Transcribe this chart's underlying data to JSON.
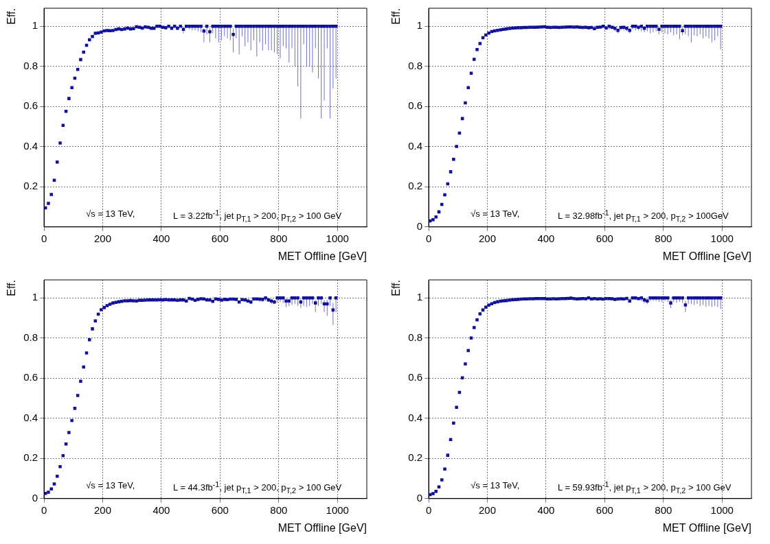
{
  "chart_data": [
    {
      "type": "scatter",
      "xlabel": "MET Offline [GeV]",
      "ylabel": "Eff.",
      "color": "#10109a",
      "marker": "square",
      "grid": true,
      "xlim": [
        0,
        1100
      ],
      "xticks": [
        0,
        200,
        400,
        600,
        800,
        1000
      ],
      "ylim": [
        0,
        1.09
      ],
      "yticks": [
        0.2,
        0.4,
        0.6,
        0.8,
        1
      ],
      "annotations": [
        "√s = 13 TeV,",
        "L = 3.22fb$^{-1}$, jet p$_{T,1}$ > 200, p$_{T,2}$ > 100 GeV"
      ],
      "x": [
        5,
        15,
        25,
        35,
        45,
        55,
        65,
        75,
        85,
        95,
        105,
        115,
        125,
        135,
        145,
        155,
        165,
        175,
        185,
        195,
        205,
        215,
        225,
        235,
        245,
        255,
        265,
        275,
        285,
        295,
        305,
        315,
        325,
        335,
        345,
        355,
        365,
        375,
        385,
        395,
        405,
        415,
        425,
        435,
        445,
        455,
        465,
        475,
        485,
        495,
        505,
        515,
        525,
        535,
        545,
        555,
        565,
        575,
        585,
        595,
        605,
        615,
        625,
        635,
        645,
        655,
        665,
        675,
        685,
        695,
        705,
        715,
        725,
        735,
        745,
        755,
        765,
        775,
        785,
        795,
        805,
        815,
        825,
        835,
        845,
        855,
        865,
        875,
        885,
        895,
        905,
        915,
        925,
        935,
        945,
        955,
        965,
        975,
        985,
        995
      ],
      "values": [
        0.095,
        0.117,
        0.162,
        0.233,
        0.323,
        0.418,
        0.506,
        0.576,
        0.64,
        0.694,
        0.741,
        0.785,
        0.834,
        0.871,
        0.905,
        0.933,
        0.949,
        0.965,
        0.967,
        0.971,
        0.977,
        0.979,
        0.978,
        0.979,
        0.984,
        0.987,
        0.984,
        0.987,
        0.991,
        0.987,
        0.988,
        0.998,
        0.995,
        0.991,
        0.997,
        0.995,
        0.99,
        0.99,
        1,
        1,
        0.995,
        0.993,
        1,
        0.99,
        1,
        0.99,
        1,
        0.985,
        1,
        1,
        1,
        1,
        1,
        1,
        0.976,
        1,
        0.973,
        1,
        1,
        1,
        1,
        1,
        1,
        1,
        0.959,
        1,
        1,
        1,
        1,
        1,
        1,
        1,
        1,
        1,
        1,
        1,
        1,
        1,
        1,
        1,
        1,
        1,
        1,
        1,
        1,
        1,
        1,
        1,
        1,
        1,
        1,
        1,
        1,
        1,
        1,
        1,
        1,
        1,
        1,
        1
      ],
      "errors": [
        null,
        null,
        null,
        null,
        null,
        null,
        null,
        null,
        null,
        null,
        null,
        null,
        null,
        null,
        null,
        null,
        null,
        null,
        null,
        null,
        null,
        null,
        null,
        null,
        null,
        null,
        null,
        null,
        null,
        null,
        null,
        null,
        null,
        null,
        null,
        null,
        null,
        null,
        null,
        null,
        null,
        null,
        null,
        null,
        null,
        null,
        null,
        [
          0.965,
          0.995
        ],
        [
          0.99,
          1
        ],
        [
          0.985,
          1
        ],
        [
          0.98,
          1
        ],
        [
          0.98,
          1
        ],
        [
          0.975,
          1
        ],
        [
          0.97,
          1
        ],
        [
          0.92,
          0.99
        ],
        [
          0.96,
          1
        ],
        [
          0.92,
          0.99
        ],
        [
          0.965,
          1
        ],
        [
          0.94,
          1
        ],
        [
          0.92,
          1
        ],
        [
          0.93,
          1
        ],
        [
          0.95,
          1
        ],
        [
          0.94,
          1
        ],
        [
          0.93,
          1
        ],
        [
          0.87,
          0.99
        ],
        [
          0.94,
          1
        ],
        [
          0.86,
          1
        ],
        [
          0.95,
          1
        ],
        [
          0.9,
          1
        ],
        [
          0.92,
          1
        ],
        [
          0.88,
          1
        ],
        [
          0.93,
          1
        ],
        [
          0.85,
          1
        ],
        [
          0.92,
          1
        ],
        [
          0.88,
          1
        ],
        [
          0.91,
          1
        ],
        [
          0.88,
          1
        ],
        [
          0.88,
          1
        ],
        [
          0.87,
          1
        ],
        [
          0.86,
          1
        ],
        [
          0.84,
          1
        ],
        [
          0.9,
          1
        ],
        [
          0.89,
          1
        ],
        [
          0.82,
          1
        ],
        [
          0.89,
          1
        ],
        [
          0.8,
          1
        ],
        [
          0.7,
          1
        ],
        [
          0.54,
          1
        ],
        [
          0.91,
          1
        ],
        [
          0.8,
          1
        ],
        [
          0.8,
          1
        ],
        [
          0.77,
          1
        ],
        [
          0.89,
          1
        ],
        [
          0.74,
          1
        ],
        [
          0.54,
          1
        ],
        [
          0.63,
          1
        ],
        [
          0.89,
          1
        ],
        [
          0.54,
          1
        ],
        [
          0.69,
          1
        ],
        [
          0.74,
          1
        ]
      ]
    },
    {
      "type": "scatter",
      "xlabel": "MET Offline [GeV]",
      "ylabel": "Eff.",
      "color": "#10109a",
      "marker": "square",
      "grid": true,
      "xlim": [
        0,
        1100
      ],
      "xticks": [
        0,
        200,
        400,
        600,
        800,
        1000
      ],
      "ylim": [
        0,
        1.09
      ],
      "yticks": [
        0,
        0.2,
        0.4,
        0.6,
        0.8,
        1
      ],
      "annotations": [
        "√s = 13 TeV,",
        "L = 32.98fb$^{-1}$, jet p$_{T,1}$ > 200, p$_{T,2}$ > 100GeV"
      ],
      "x": [
        5,
        15,
        25,
        35,
        45,
        55,
        65,
        75,
        85,
        95,
        105,
        115,
        125,
        135,
        145,
        155,
        165,
        175,
        185,
        195,
        205,
        215,
        225,
        235,
        245,
        255,
        265,
        275,
        285,
        295,
        305,
        315,
        325,
        335,
        345,
        355,
        365,
        375,
        385,
        395,
        405,
        415,
        425,
        435,
        445,
        455,
        465,
        475,
        485,
        495,
        505,
        515,
        525,
        535,
        545,
        555,
        565,
        575,
        585,
        595,
        605,
        615,
        625,
        635,
        645,
        655,
        665,
        675,
        685,
        695,
        705,
        715,
        725,
        735,
        745,
        755,
        765,
        775,
        785,
        795,
        805,
        815,
        825,
        835,
        845,
        855,
        865,
        875,
        885,
        895,
        905,
        915,
        925,
        935,
        945,
        955,
        965,
        975,
        985,
        995
      ],
      "values": [
        0.03,
        0.036,
        0.05,
        0.075,
        0.112,
        0.16,
        0.215,
        0.275,
        0.337,
        0.401,
        0.468,
        0.54,
        0.618,
        0.694,
        0.766,
        0.835,
        0.884,
        0.914,
        0.943,
        0.957,
        0.966,
        0.974,
        0.977,
        0.98,
        0.982,
        0.985,
        0.987,
        0.989,
        0.991,
        0.992,
        0.993,
        0.993,
        0.994,
        0.994,
        0.995,
        0.995,
        0.995,
        0.996,
        0.997,
        0.998,
        0.995,
        0.994,
        0.995,
        0.995,
        0.994,
        0.995,
        0.996,
        0.997,
        0.997,
        0.996,
        0.997,
        0.995,
        0.994,
        0.995,
        0.993,
        0.994,
        0.988,
        0.995,
        0.996,
        1,
        0.992,
        1,
        0.995,
        0.99,
        0.98,
        0.994,
        0.995,
        0.99,
        0.98,
        1,
        1,
        0.995,
        1,
        0.99,
        1,
        1,
        1,
        1,
        0.985,
        1,
        1,
        1,
        1,
        1,
        1,
        1,
        0.978,
        1,
        1,
        1,
        1,
        1,
        1,
        1,
        1,
        1,
        1,
        1,
        1,
        1
      ],
      "errors": [
        null,
        null,
        null,
        null,
        null,
        null,
        null,
        null,
        null,
        null,
        null,
        null,
        null,
        null,
        null,
        null,
        null,
        null,
        null,
        null,
        null,
        null,
        null,
        null,
        null,
        null,
        null,
        null,
        null,
        null,
        null,
        null,
        null,
        null,
        null,
        null,
        null,
        null,
        null,
        null,
        null,
        null,
        null,
        null,
        null,
        null,
        null,
        null,
        null,
        null,
        null,
        null,
        null,
        null,
        null,
        null,
        null,
        null,
        null,
        null,
        [
          0.985,
          0.997
        ],
        [
          0.985,
          1
        ],
        [
          0.985,
          1
        ],
        [
          0.975,
          0.995
        ],
        [
          0.965,
          0.99
        ],
        [
          0.98,
          1
        ],
        [
          0.98,
          1
        ],
        [
          0.975,
          0.998
        ],
        [
          0.965,
          0.99
        ],
        [
          0.985,
          1
        ],
        [
          0.98,
          1
        ],
        [
          0.98,
          1
        ],
        [
          0.975,
          1
        ],
        [
          0.97,
          0.997
        ],
        [
          0.975,
          1
        ],
        [
          0.965,
          1
        ],
        [
          0.97,
          1
        ],
        [
          0.975,
          1
        ],
        [
          0.96,
          0.995
        ],
        [
          0.97,
          1
        ],
        [
          0.965,
          1
        ],
        [
          0.96,
          1
        ],
        [
          0.97,
          1
        ],
        [
          0.955,
          1
        ],
        [
          0.96,
          1
        ],
        [
          0.935,
          1
        ],
        [
          0.955,
          0.995
        ],
        [
          0.96,
          1
        ],
        [
          0.95,
          1
        ],
        [
          0.92,
          1
        ],
        [
          0.955,
          1
        ],
        [
          0.95,
          1
        ],
        [
          0.96,
          1
        ],
        [
          0.94,
          1
        ],
        [
          0.95,
          1
        ],
        [
          0.94,
          1
        ],
        [
          0.92,
          1
        ],
        [
          0.93,
          1
        ],
        [
          0.95,
          1
        ],
        [
          0.885,
          1
        ]
      ]
    },
    {
      "type": "scatter",
      "xlabel": "MET Offline [GeV]",
      "ylabel": "Eff.",
      "color": "#10109a",
      "marker": "square",
      "grid": true,
      "xlim": [
        0,
        1100
      ],
      "xticks": [
        0,
        200,
        400,
        600,
        800,
        1000
      ],
      "ylim": [
        0,
        1.09
      ],
      "yticks": [
        0,
        0.2,
        0.4,
        0.6,
        0.8,
        1
      ],
      "annotations": [
        "√s = 13 TeV,",
        "L = 44.3fb$^{-1}$, jet p$_{T,1}$ > 200, p$_{T,2}$ > 100 GeV"
      ],
      "x": [
        5,
        15,
        25,
        35,
        45,
        55,
        65,
        75,
        85,
        95,
        105,
        115,
        125,
        135,
        145,
        155,
        165,
        175,
        185,
        195,
        205,
        215,
        225,
        235,
        245,
        255,
        265,
        275,
        285,
        295,
        305,
        315,
        325,
        335,
        345,
        355,
        365,
        375,
        385,
        395,
        405,
        415,
        425,
        435,
        445,
        455,
        465,
        475,
        485,
        495,
        505,
        515,
        525,
        535,
        545,
        555,
        565,
        575,
        585,
        595,
        605,
        615,
        625,
        635,
        645,
        655,
        665,
        675,
        685,
        695,
        705,
        715,
        725,
        735,
        745,
        755,
        765,
        775,
        785,
        795,
        805,
        815,
        825,
        835,
        845,
        855,
        865,
        875,
        885,
        895,
        905,
        915,
        925,
        935,
        945,
        955,
        965,
        975,
        985,
        995
      ],
      "values": [
        0.026,
        0.032,
        0.048,
        0.073,
        0.111,
        0.159,
        0.214,
        0.272,
        0.329,
        0.389,
        0.45,
        0.514,
        0.585,
        0.656,
        0.726,
        0.792,
        0.846,
        0.886,
        0.919,
        0.941,
        0.952,
        0.962,
        0.969,
        0.975,
        0.978,
        0.981,
        0.983,
        0.986,
        0.986,
        0.987,
        0.986,
        0.985,
        0.988,
        0.988,
        0.989,
        0.99,
        0.99,
        0.99,
        0.99,
        0.991,
        0.99,
        0.992,
        0.99,
        0.99,
        0.99,
        0.988,
        0.99,
        0.99,
        0.985,
        0.998,
        0.994,
        0.988,
        0.993,
        0.996,
        0.995,
        0.99,
        0.99,
        0.983,
        0.995,
        0.993,
        0.989,
        0.993,
        0.992,
        0.994,
        0.994,
        0.993,
        0.98,
        0.992,
        0.99,
        0.985,
        0.98,
        0.995,
        0.995,
        0.994,
        0.993,
        1,
        0.99,
        0.985,
        0.98,
        1,
        1,
        1,
        0.985,
        0.985,
        1,
        1,
        1,
        0.98,
        1,
        1,
        1,
        1,
        0.975,
        1,
        1,
        0.97,
        0.97,
        1,
        0.94,
        1
      ],
      "errors": [
        null,
        null,
        null,
        null,
        null,
        null,
        null,
        null,
        null,
        null,
        null,
        null,
        null,
        null,
        null,
        null,
        null,
        null,
        null,
        null,
        null,
        null,
        null,
        null,
        null,
        null,
        null,
        null,
        null,
        null,
        null,
        null,
        null,
        null,
        null,
        null,
        null,
        null,
        null,
        null,
        null,
        null,
        null,
        null,
        null,
        null,
        null,
        null,
        null,
        null,
        null,
        null,
        null,
        null,
        null,
        null,
        null,
        null,
        null,
        null,
        null,
        null,
        null,
        null,
        null,
        null,
        null,
        null,
        null,
        null,
        [
          0.97,
          0.99
        ],
        [
          0.985,
          1
        ],
        [
          0.985,
          1
        ],
        [
          0.98,
          1
        ],
        [
          0.98,
          1
        ],
        [
          0.985,
          1
        ],
        [
          0.98,
          1
        ],
        [
          0.97,
          0.995
        ],
        [
          0.97,
          0.99
        ],
        [
          0.975,
          1
        ],
        [
          0.98,
          1
        ],
        [
          0.975,
          1
        ],
        [
          0.955,
          0.995
        ],
        [
          0.96,
          0.995
        ],
        [
          0.965,
          1
        ],
        [
          0.97,
          1
        ],
        [
          0.96,
          1
        ],
        [
          0.95,
          0.995
        ],
        [
          0.96,
          1
        ],
        [
          0.955,
          1
        ],
        [
          0.96,
          1
        ],
        [
          0.97,
          1
        ],
        [
          0.93,
          0.99
        ],
        [
          0.96,
          1
        ],
        [
          0.97,
          1
        ],
        [
          0.93,
          0.99
        ],
        [
          0.91,
          0.99
        ],
        [
          0.96,
          1
        ],
        [
          0.865,
          0.975
        ],
        [
          0.93,
          1
        ]
      ]
    },
    {
      "type": "scatter",
      "xlabel": "MET Offline [GeV]",
      "ylabel": "Eff.",
      "color": "#10109a",
      "marker": "square",
      "grid": true,
      "xlim": [
        0,
        1100
      ],
      "xticks": [
        0,
        200,
        400,
        600,
        800,
        1000
      ],
      "ylim": [
        0,
        1.09
      ],
      "yticks": [
        0,
        0.2,
        0.4,
        0.6,
        0.8,
        1
      ],
      "annotations": [
        "√s = 13 TeV,",
        "L = 59.93fb$^{-1}$, jet p$_{T,1}$ > 200, p$_{T,2}$ > 100 GeV"
      ],
      "x": [
        5,
        15,
        25,
        35,
        45,
        55,
        65,
        75,
        85,
        95,
        105,
        115,
        125,
        135,
        145,
        155,
        165,
        175,
        185,
        195,
        205,
        215,
        225,
        235,
        245,
        255,
        265,
        275,
        285,
        295,
        305,
        315,
        325,
        335,
        345,
        355,
        365,
        375,
        385,
        395,
        405,
        415,
        425,
        435,
        445,
        455,
        465,
        475,
        485,
        495,
        505,
        515,
        525,
        535,
        545,
        555,
        565,
        575,
        585,
        595,
        605,
        615,
        625,
        635,
        645,
        655,
        665,
        675,
        685,
        695,
        705,
        715,
        725,
        735,
        745,
        755,
        765,
        775,
        785,
        795,
        805,
        815,
        825,
        835,
        845,
        855,
        865,
        875,
        885,
        895,
        905,
        915,
        925,
        935,
        945,
        955,
        965,
        975,
        985,
        995
      ],
      "values": [
        0.02,
        0.025,
        0.036,
        0.058,
        0.093,
        0.147,
        0.216,
        0.294,
        0.376,
        0.455,
        0.529,
        0.602,
        0.671,
        0.738,
        0.8,
        0.852,
        0.891,
        0.921,
        0.94,
        0.954,
        0.964,
        0.971,
        0.977,
        0.981,
        0.984,
        0.986,
        0.987,
        0.989,
        0.991,
        0.992,
        0.993,
        0.994,
        0.995,
        0.995,
        0.996,
        0.996,
        0.997,
        0.997,
        0.997,
        0.997,
        0.995,
        0.995,
        0.996,
        0.995,
        0.996,
        0.997,
        0.997,
        0.998,
        0.999,
        0.997,
        0.995,
        0.996,
        0.997,
        0.996,
        1,
        0.995,
        0.997,
        0.995,
        0.996,
        0.994,
        0.997,
        0.997,
        0.996,
        0.993,
        0.995,
        0.996,
        0.995,
        0.998,
        0.985,
        1,
        1,
        0.997,
        1,
        0.99,
        0.985,
        1,
        1,
        1,
        1,
        1,
        1,
        1,
        0.975,
        1,
        1,
        1,
        1,
        0.965,
        1,
        1,
        1,
        1,
        1,
        1,
        1,
        1,
        1,
        1,
        1,
        1
      ],
      "errors": [
        null,
        null,
        null,
        null,
        null,
        null,
        null,
        null,
        null,
        null,
        null,
        null,
        null,
        null,
        null,
        null,
        null,
        null,
        null,
        null,
        null,
        null,
        null,
        null,
        null,
        null,
        null,
        null,
        null,
        null,
        null,
        null,
        null,
        null,
        null,
        null,
        null,
        null,
        null,
        null,
        null,
        null,
        null,
        null,
        null,
        null,
        null,
        null,
        null,
        null,
        null,
        null,
        null,
        null,
        null,
        null,
        null,
        null,
        null,
        null,
        null,
        null,
        null,
        null,
        null,
        null,
        null,
        null,
        [
          0.975,
          0.995
        ],
        [
          0.99,
          1
        ],
        [
          0.99,
          1
        ],
        [
          0.99,
          1
        ],
        [
          0.985,
          1
        ],
        [
          0.975,
          0.998
        ],
        [
          0.97,
          0.995
        ],
        [
          0.985,
          1
        ],
        [
          0.985,
          1
        ],
        [
          0.985,
          1
        ],
        [
          0.98,
          1
        ],
        [
          0.98,
          1
        ],
        [
          0.985,
          1
        ],
        [
          0.98,
          1
        ],
        [
          0.95,
          0.99
        ],
        [
          0.98,
          1
        ],
        [
          0.975,
          1
        ],
        [
          0.98,
          1
        ],
        [
          0.975,
          1
        ],
        [
          0.93,
          0.985
        ],
        [
          0.97,
          1
        ],
        [
          0.97,
          1
        ],
        [
          0.965,
          1
        ],
        [
          0.97,
          1
        ],
        [
          0.96,
          1
        ],
        [
          0.965,
          1
        ],
        [
          0.955,
          1
        ],
        [
          0.96,
          1
        ],
        [
          0.955,
          1
        ],
        [
          0.96,
          1
        ],
        [
          0.955,
          1
        ],
        [
          0.945,
          1
        ]
      ]
    }
  ]
}
